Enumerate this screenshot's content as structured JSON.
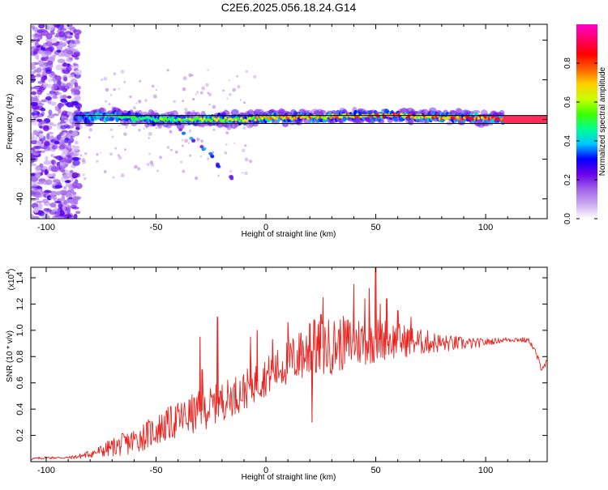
{
  "page": {
    "title": "C2E6.2025.056.18.24.G14"
  },
  "chart_data": [
    {
      "type": "heatmap",
      "xlabel": "Height of straight line (km)",
      "ylabel": "Frequency (Hz)",
      "xlim": [
        -107,
        128
      ],
      "ylim": [
        -50,
        48
      ],
      "x_ticks": [
        -100,
        -50,
        0,
        50,
        100
      ],
      "x_tick_labels": [
        "-100",
        "-50",
        "0",
        "50",
        "100"
      ],
      "y_ticks": [
        -40,
        -20,
        0,
        20,
        40
      ],
      "y_tick_labels": [
        "-40",
        "-20",
        "0",
        "20",
        "40"
      ],
      "colorbar": {
        "label": "Normalized spectral amplitude",
        "range": [
          0,
          1
        ],
        "ticks": [
          0.0,
          0.2,
          0.4,
          0.6,
          0.8
        ],
        "tick_labels": [
          "0.0",
          "0.2",
          "0.4",
          "0.6",
          "0.8"
        ],
        "colors": [
          "#ffffff",
          "#c9a8f0",
          "#a060e8",
          "#6a00e8",
          "#0000ff",
          "#00c8ff",
          "#00ff90",
          "#40ff00",
          "#c8ff00",
          "#ffd000",
          "#ff6000",
          "#ff0000",
          "#ff0066",
          "#ff00cc"
        ]
      },
      "tone_band": {
        "x": [
          -87,
          -70,
          -50,
          -30,
          -10,
          0,
          20,
          40,
          60,
          80,
          100,
          108
        ],
        "center_hz": [
          1,
          2,
          0,
          0,
          0,
          1,
          1,
          2,
          2,
          1,
          1,
          0
        ],
        "amplitude": [
          0.35,
          0.45,
          0.55,
          0.6,
          0.65,
          0.7,
          0.75,
          0.75,
          0.8,
          0.8,
          0.85,
          0.9
        ]
      },
      "reference_line": {
        "x_start": 108,
        "x_end": 128,
        "freq_hz": 0,
        "half_width_hz": 2
      },
      "noise_region": {
        "x_start": -107,
        "x_end": -85,
        "freq_range_hz": [
          -50,
          48
        ]
      },
      "secondary_trace": {
        "x": [
          -38,
          -33,
          -29,
          -25,
          -21,
          -16
        ],
        "freq_hz": [
          -6,
          -10,
          -14,
          -18,
          -23,
          -29
        ]
      }
    },
    {
      "type": "line",
      "xlabel": "Height of straight line (km)",
      "ylabel": "SNR (10 * v/v)",
      "y_multiplier_label": "(x10",
      "y_multiplier_exponent": "4",
      "xlim": [
        -107,
        128
      ],
      "ylim": [
        0,
        1.48
      ],
      "x_ticks": [
        -100,
        -50,
        0,
        50,
        100
      ],
      "x_tick_labels": [
        "-100",
        "-50",
        "0",
        "50",
        "100"
      ],
      "y_ticks": [
        0.2,
        0.4,
        0.6,
        0.8,
        1.0,
        1.2,
        1.4
      ],
      "y_tick_labels": [
        "0.2",
        "0.4",
        "0.6",
        "0.8",
        "1.0",
        "1.2",
        "1.4"
      ],
      "series": [
        {
          "color": "#e8231f",
          "x": [
            -107,
            -100,
            -90,
            -85,
            -80,
            -75,
            -70,
            -65,
            -60,
            -55,
            -50,
            -45,
            -40,
            -35,
            -30,
            -25,
            -20,
            -15,
            -10,
            -5,
            0,
            5,
            10,
            15,
            20,
            25,
            30,
            35,
            40,
            45,
            50,
            55,
            60,
            65,
            70,
            75,
            80,
            85,
            90,
            95,
            100,
            105,
            110,
            115,
            120,
            123,
            125,
            128
          ],
          "y": [
            0.02,
            0.03,
            0.03,
            0.04,
            0.06,
            0.08,
            0.11,
            0.13,
            0.16,
            0.2,
            0.24,
            0.28,
            0.32,
            0.35,
            0.38,
            0.42,
            0.46,
            0.5,
            0.54,
            0.6,
            0.65,
            0.7,
            0.76,
            0.8,
            0.84,
            0.86,
            0.88,
            0.9,
            0.91,
            0.92,
            0.93,
            0.93,
            0.92,
            0.92,
            0.91,
            0.91,
            0.9,
            0.9,
            0.9,
            0.9,
            0.91,
            0.92,
            0.93,
            0.93,
            0.92,
            0.82,
            0.72,
            0.75
          ],
          "noise_amplitude": [
            0.01,
            0.01,
            0.01,
            0.02,
            0.03,
            0.05,
            0.07,
            0.09,
            0.1,
            0.11,
            0.12,
            0.13,
            0.14,
            0.15,
            0.16,
            0.15,
            0.15,
            0.15,
            0.15,
            0.15,
            0.15,
            0.16,
            0.18,
            0.2,
            0.22,
            0.22,
            0.22,
            0.21,
            0.2,
            0.19,
            0.18,
            0.16,
            0.14,
            0.12,
            0.1,
            0.09,
            0.07,
            0.06,
            0.05,
            0.04,
            0.03,
            0.02,
            0.02,
            0.02,
            0.02,
            0.03,
            0.03,
            0.03
          ],
          "peaks": [
            {
              "x": -30,
              "y": 0.95
            },
            {
              "x": -29,
              "y": 0.7
            },
            {
              "x": -22,
              "y": 1.1
            },
            {
              "x": -7,
              "y": 0.95
            },
            {
              "x": -4,
              "y": 1.0
            },
            {
              "x": 3,
              "y": 0.93
            },
            {
              "x": 10,
              "y": 1.06
            },
            {
              "x": 16,
              "y": 0.98
            },
            {
              "x": 20,
              "y": 1.05
            },
            {
              "x": 21,
              "y": 0.3
            },
            {
              "x": 22,
              "y": 1.08
            },
            {
              "x": 25,
              "y": 1.12
            },
            {
              "x": 26,
              "y": 1.25
            },
            {
              "x": 40,
              "y": 1.35
            },
            {
              "x": 45,
              "y": 1.24
            },
            {
              "x": 47,
              "y": 1.32
            },
            {
              "x": 50,
              "y": 1.48
            },
            {
              "x": 52,
              "y": 1.2
            },
            {
              "x": 55,
              "y": 1.24
            },
            {
              "x": 60,
              "y": 1.15
            },
            {
              "x": 66,
              "y": 1.1
            }
          ]
        }
      ]
    }
  ]
}
